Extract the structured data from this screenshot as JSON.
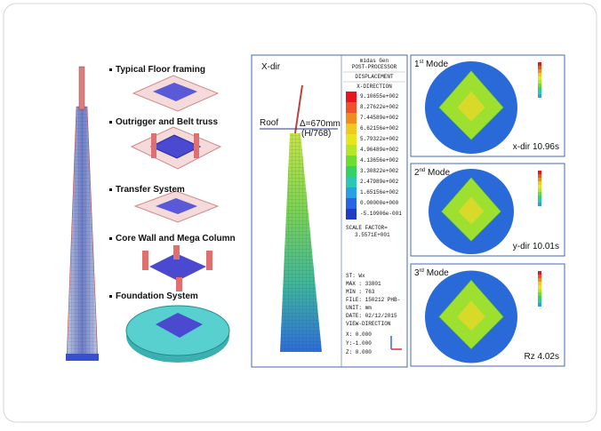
{
  "left_panel": {
    "items": [
      "Typical Floor framing",
      "Outrigger and Belt truss",
      "Transfer System",
      "Core Wall and Mega Column",
      "Foundation System"
    ]
  },
  "center_panel": {
    "direction": "X-dir",
    "roof": "Roof",
    "delta": "Δ=670mm",
    "ratio": "(H/768)"
  },
  "midas_panel": {
    "program": "midas Gen",
    "module": "POST-PROCESSOR",
    "result": "DISPLACEMENT",
    "component": "X-DIRECTION",
    "legend": [
      "9.10655e+002",
      "8.27622e+002",
      "7.44589e+002",
      "6.62156e+002",
      "5.79322e+002",
      "4.96489e+002",
      "4.13656e+002",
      "3.30822e+002",
      "2.47989e+002",
      "1.65156e+002",
      "0.00000e+000",
      "-5.10906e-001"
    ],
    "scale_label": "SCALE FACTOR=",
    "scale_value": "3.5571E+001",
    "info": [
      "ST: Wx",
      "MAX : 33801",
      "MIN : 763",
      "FILE: 150212 PHB-",
      "UNIT: mm",
      "DATE: 02/12/2015",
      "VIEW-DIRECTION"
    ],
    "view": [
      "X: 0.000",
      "Y:-1.000",
      "Z: 0.000"
    ]
  },
  "modes": [
    {
      "ordinal": "1",
      "suffix": "st",
      "label": "Mode",
      "caption": "x-dir 10.96s"
    },
    {
      "ordinal": "2",
      "suffix": "nd",
      "label": "Mode",
      "caption": "y-dir 10.01s"
    },
    {
      "ordinal": "3",
      "suffix": "rd",
      "label": "Mode",
      "caption": "Rz 4.02s"
    }
  ]
}
